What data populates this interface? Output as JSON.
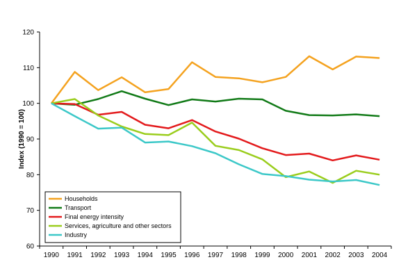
{
  "chart_data": {
    "type": "line",
    "ylabel": "Index (1990 = 100)",
    "ylim": [
      60,
      120
    ],
    "yticks": [
      60,
      70,
      80,
      90,
      100,
      110,
      120
    ],
    "x": [
      "1990",
      "1991",
      "1992",
      "1993",
      "1994",
      "1995",
      "1996",
      "1997",
      "1998",
      "1999",
      "2000",
      "2001",
      "2002",
      "2003",
      "2004"
    ],
    "grid": false,
    "legend_position": "bottom-left",
    "series": [
      {
        "name": "Households",
        "color": "#f4a21f",
        "values": [
          100,
          108.8,
          103.7,
          107.3,
          103.1,
          104.0,
          111.5,
          107.4,
          107.0,
          105.9,
          107.4,
          113.2,
          109.5,
          113.1,
          112.7
        ]
      },
      {
        "name": "Transport",
        "color": "#117a17",
        "values": [
          100,
          99.6,
          101.2,
          103.4,
          101.3,
          99.5,
          101.1,
          100.5,
          101.3,
          101.1,
          97.9,
          96.7,
          96.6,
          96.9,
          96.4
        ]
      },
      {
        "name": "Final energy intensity",
        "color": "#e31a1c",
        "values": [
          100,
          99.8,
          96.8,
          97.6,
          94.0,
          93.0,
          95.3,
          92.1,
          90.1,
          87.4,
          85.5,
          85.9,
          84.0,
          85.4,
          84.2
        ]
      },
      {
        "name": "Services, agriculture and other sectors",
        "color": "#9acd1c",
        "values": [
          100,
          101.2,
          96.6,
          93.5,
          91.4,
          91.1,
          94.6,
          88.1,
          86.9,
          84.3,
          79.3,
          80.9,
          77.7,
          81.1,
          80.0
        ]
      },
      {
        "name": "Industry",
        "color": "#3cc8c8",
        "values": [
          100,
          96.4,
          92.9,
          93.2,
          89.0,
          89.3,
          88.0,
          86.0,
          82.9,
          80.2,
          79.6,
          78.6,
          78.1,
          78.5,
          77.1
        ]
      }
    ]
  }
}
